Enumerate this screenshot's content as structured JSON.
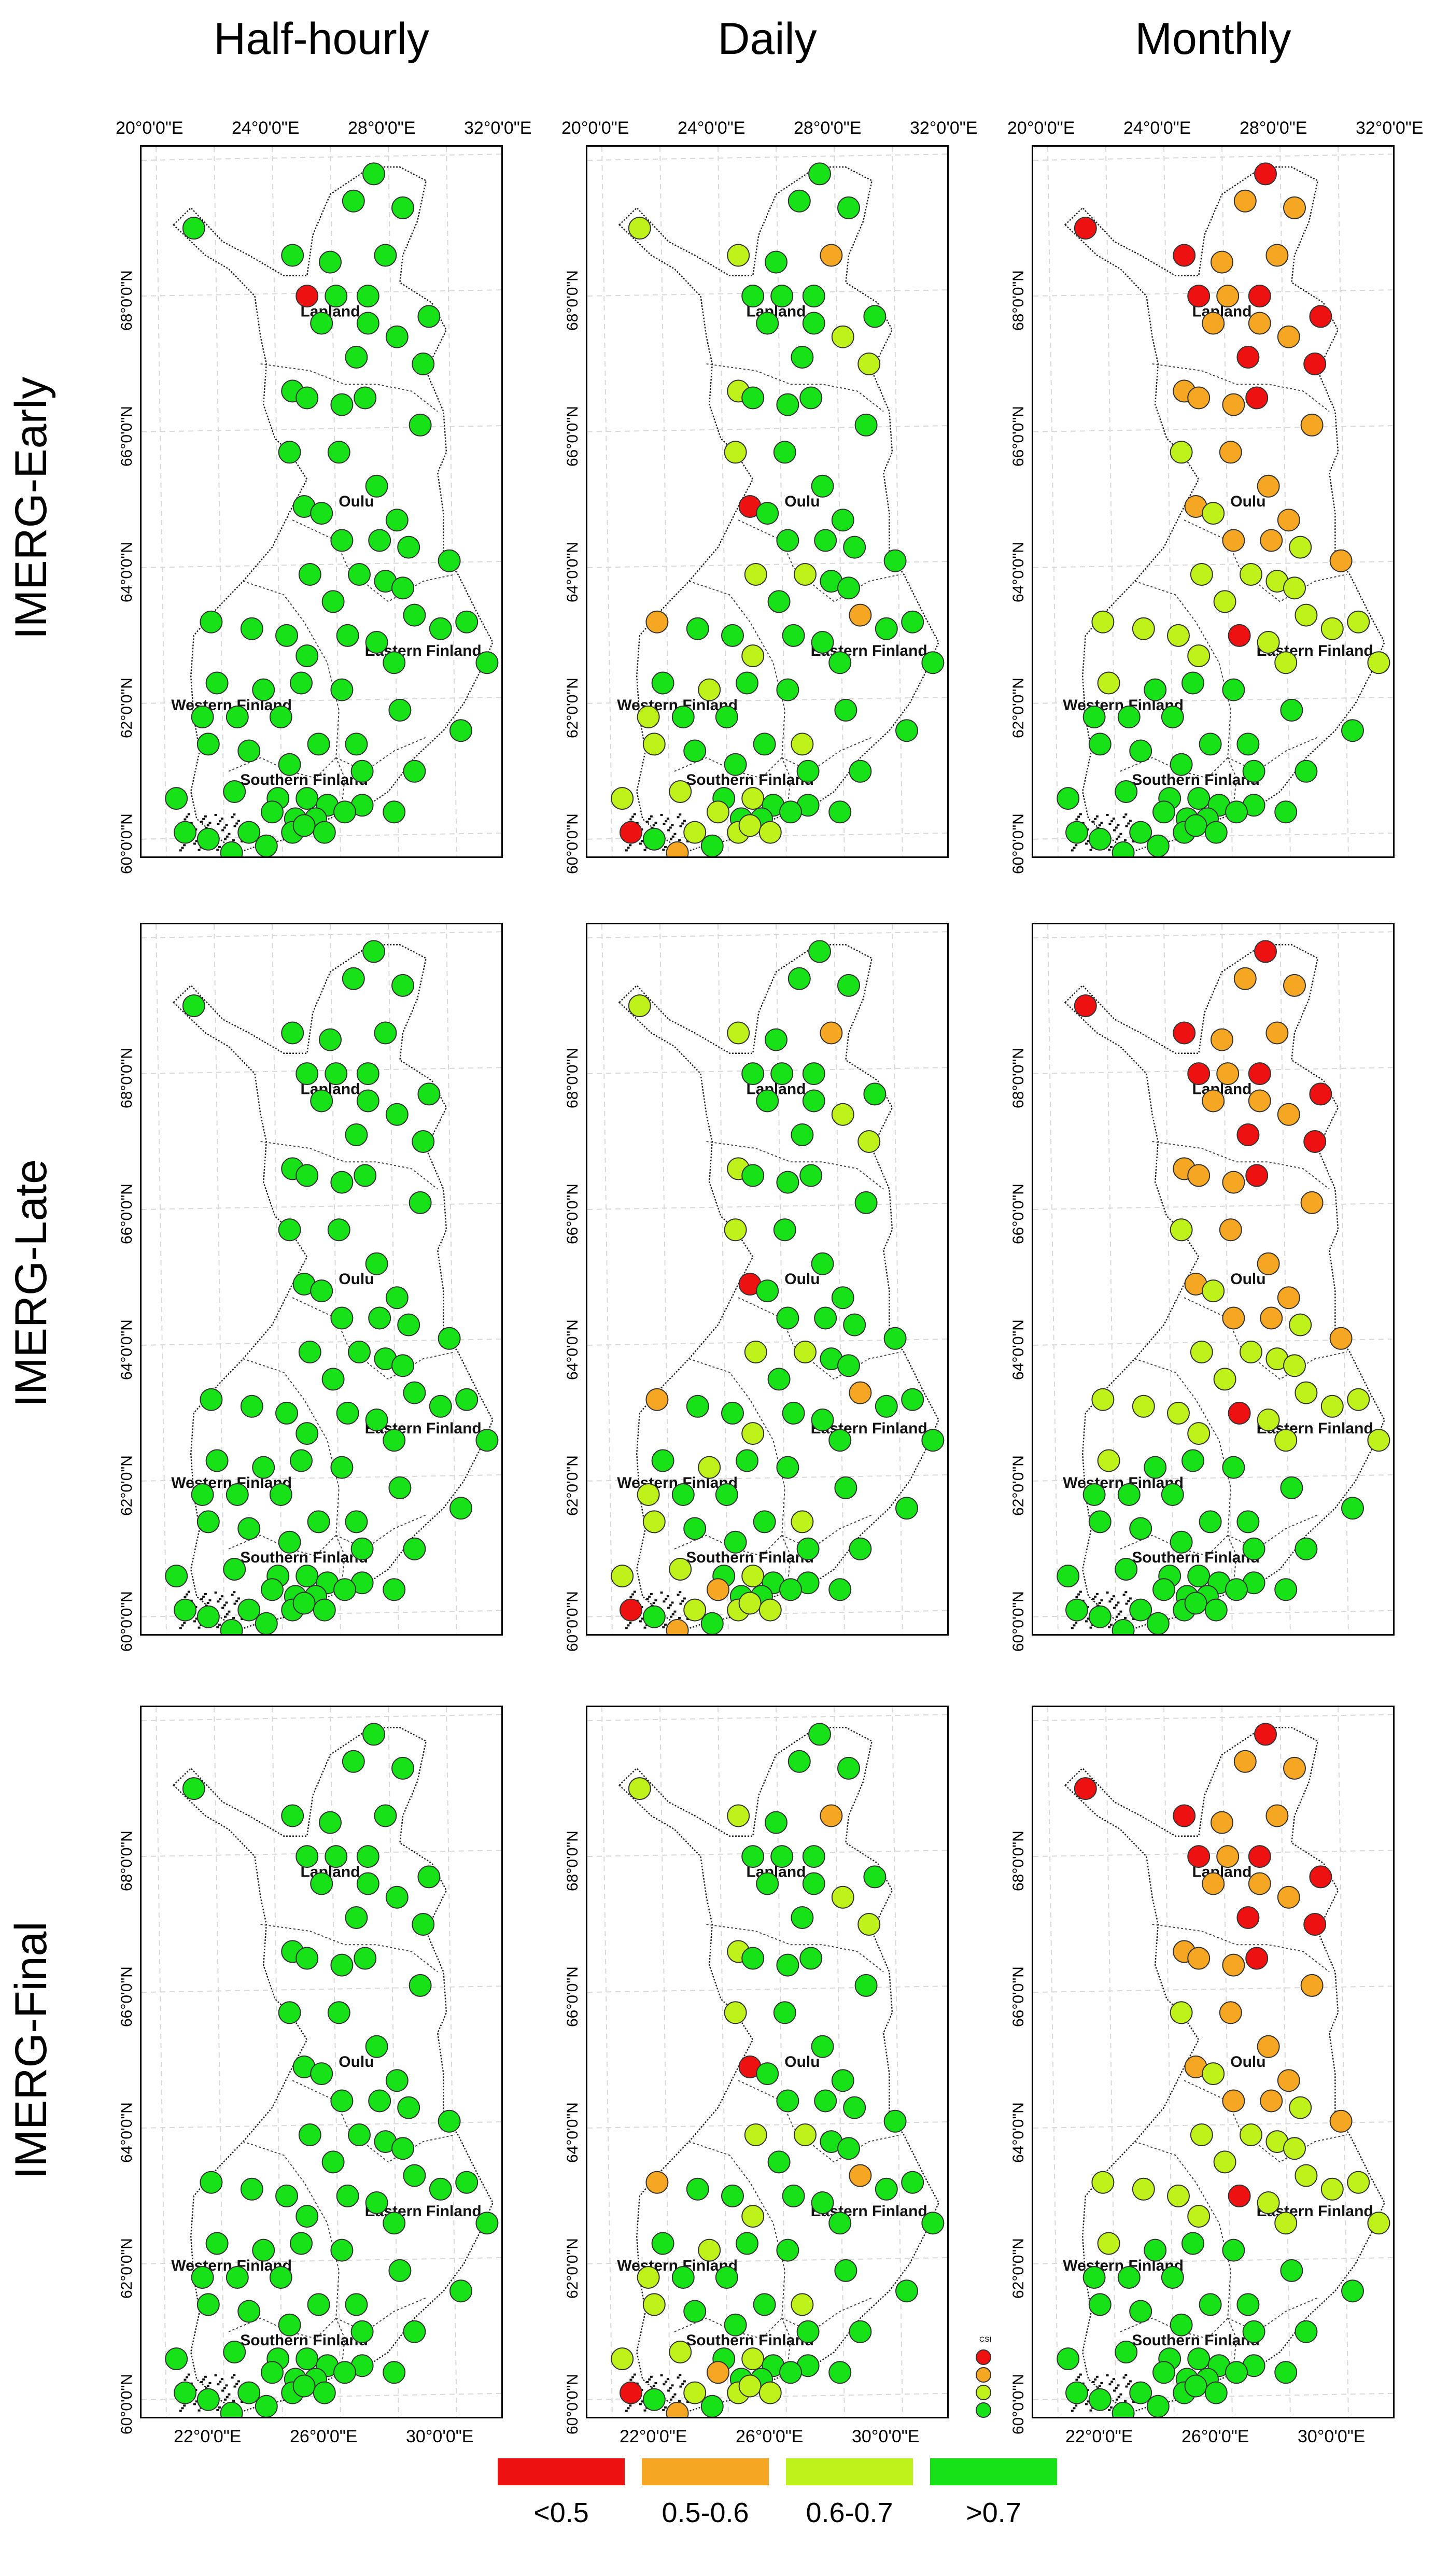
{
  "figure": {
    "column_titles": [
      "Half-hourly",
      "Daily",
      "Monthly"
    ],
    "row_titles": [
      "IMERG-Early",
      "IMERG-Late",
      "IMERG-Final"
    ],
    "top_axis_labels": [
      "20°0'0\"E",
      "24°0'0\"E",
      "28°0'0\"E",
      "32°0'0\"E"
    ],
    "bottom_axis_labels": [
      "22°0'0\"E",
      "26°0'0\"E",
      "30°0'0\"E"
    ],
    "left_axis_labels": [
      "68°0'0\"N",
      "66°0'0\"N",
      "64°0'0\"N",
      "62°0'0\"N",
      "60°0'0\"N"
    ],
    "region_labels": [
      "Lapland",
      "Oulu",
      "Eastern Finland",
      "Western Finland",
      "Southern Finland"
    ],
    "legend_title": "CSI",
    "legend": [
      {
        "label": "<0.5",
        "color": "#ee1111"
      },
      {
        "label": "0.5-0.6",
        "color": "#f5a623"
      },
      {
        "label": "0.6-0.7",
        "color": "#bff21b"
      },
      {
        "label": ">0.7",
        "color": "#17e117"
      }
    ]
  },
  "chart_data": {
    "type": "scatter",
    "description_units": "station lon/lat (degrees); csi class per panel",
    "stations": [
      [
        27.5,
        69.8
      ],
      [
        26.8,
        69.4
      ],
      [
        28.5,
        69.3
      ],
      [
        21.3,
        69.0
      ],
      [
        24.7,
        68.6
      ],
      [
        26.0,
        68.5
      ],
      [
        27.9,
        68.6
      ],
      [
        25.2,
        68.0
      ],
      [
        26.2,
        68.0
      ],
      [
        27.3,
        68.0
      ],
      [
        29.4,
        67.7
      ],
      [
        25.7,
        67.6
      ],
      [
        27.3,
        67.6
      ],
      [
        28.3,
        67.4
      ],
      [
        26.9,
        67.1
      ],
      [
        29.2,
        67.0
      ],
      [
        24.7,
        66.6
      ],
      [
        25.2,
        66.5
      ],
      [
        26.4,
        66.4
      ],
      [
        27.2,
        66.5
      ],
      [
        29.1,
        66.1
      ],
      [
        24.6,
        65.7
      ],
      [
        26.3,
        65.7
      ],
      [
        27.6,
        65.2
      ],
      [
        25.1,
        64.9
      ],
      [
        25.7,
        64.8
      ],
      [
        28.3,
        64.7
      ],
      [
        26.4,
        64.4
      ],
      [
        27.7,
        64.4
      ],
      [
        28.7,
        64.3
      ],
      [
        30.1,
        64.1
      ],
      [
        25.3,
        63.9
      ],
      [
        27.0,
        63.9
      ],
      [
        27.9,
        63.8
      ],
      [
        28.5,
        63.7
      ],
      [
        26.1,
        63.5
      ],
      [
        21.9,
        63.2
      ],
      [
        23.3,
        63.1
      ],
      [
        24.5,
        63.0
      ],
      [
        26.6,
        63.0
      ],
      [
        28.9,
        63.3
      ],
      [
        29.8,
        63.1
      ],
      [
        30.7,
        63.2
      ],
      [
        27.6,
        62.9
      ],
      [
        25.2,
        62.7
      ],
      [
        28.2,
        62.6
      ],
      [
        31.4,
        62.6
      ],
      [
        22.1,
        62.3
      ],
      [
        23.7,
        62.2
      ],
      [
        25.0,
        62.3
      ],
      [
        26.4,
        62.2
      ],
      [
        21.6,
        61.8
      ],
      [
        22.8,
        61.8
      ],
      [
        24.3,
        61.8
      ],
      [
        28.4,
        61.9
      ],
      [
        30.5,
        61.6
      ],
      [
        21.8,
        61.4
      ],
      [
        23.2,
        61.3
      ],
      [
        25.6,
        61.4
      ],
      [
        26.9,
        61.4
      ],
      [
        24.6,
        61.1
      ],
      [
        27.1,
        61.0
      ],
      [
        28.9,
        61.0
      ],
      [
        20.7,
        60.6
      ],
      [
        22.7,
        60.7
      ],
      [
        24.2,
        60.6
      ],
      [
        25.2,
        60.6
      ],
      [
        25.9,
        60.5
      ],
      [
        27.1,
        60.5
      ],
      [
        28.2,
        60.4
      ],
      [
        24.0,
        60.4
      ],
      [
        24.8,
        60.3
      ],
      [
        25.5,
        60.3
      ],
      [
        26.5,
        60.4
      ],
      [
        21.0,
        60.1
      ],
      [
        21.8,
        60.0
      ],
      [
        23.2,
        60.1
      ],
      [
        24.7,
        60.1
      ],
      [
        25.1,
        60.2
      ],
      [
        25.8,
        60.1
      ],
      [
        22.6,
        59.8
      ],
      [
        23.8,
        59.9
      ]
    ],
    "panels": [
      {
        "row": "IMERG-Early",
        "col": "Half-hourly",
        "red": [
          7
        ],
        "orange": [],
        "yellow": []
      },
      {
        "row": "IMERG-Early",
        "col": "Daily",
        "red": [
          24,
          74
        ],
        "orange": [
          6,
          36,
          40,
          80
        ],
        "yellow": [
          3,
          4,
          13,
          15,
          16,
          21,
          31,
          32,
          44,
          48,
          51,
          56,
          59,
          63,
          64,
          66,
          70,
          76,
          77,
          78,
          79
        ]
      },
      {
        "row": "IMERG-Early",
        "col": "Monthly",
        "red": [
          0,
          3,
          4,
          7,
          9,
          10,
          14,
          15,
          19,
          39
        ],
        "orange": [
          1,
          2,
          5,
          6,
          8,
          11,
          12,
          13,
          16,
          17,
          18,
          20,
          22,
          23,
          24,
          26,
          27,
          28,
          30
        ],
        "yellow": [
          21,
          25,
          29,
          31,
          32,
          33,
          34,
          35,
          36,
          37,
          38,
          40,
          41,
          42,
          43,
          44,
          45,
          46,
          47
        ]
      },
      {
        "row": "IMERG-Late",
        "col": "Half-hourly",
        "red": [],
        "orange": [],
        "yellow": []
      },
      {
        "row": "IMERG-Late",
        "col": "Daily",
        "red": [
          24,
          74
        ],
        "orange": [
          6,
          36,
          40,
          80,
          70
        ],
        "yellow": [
          3,
          4,
          13,
          15,
          16,
          21,
          31,
          32,
          44,
          48,
          51,
          56,
          59,
          63,
          64,
          66,
          76,
          77,
          78,
          79
        ]
      },
      {
        "row": "IMERG-Late",
        "col": "Monthly",
        "red": [
          0,
          3,
          4,
          7,
          9,
          10,
          14,
          15,
          19,
          39
        ],
        "orange": [
          1,
          2,
          5,
          6,
          8,
          11,
          12,
          13,
          16,
          17,
          18,
          20,
          22,
          23,
          24,
          26,
          27,
          28,
          30
        ],
        "yellow": [
          21,
          25,
          29,
          31,
          32,
          33,
          34,
          35,
          36,
          37,
          38,
          40,
          41,
          42,
          43,
          44,
          45,
          46,
          47
        ]
      },
      {
        "row": "IMERG-Final",
        "col": "Half-hourly",
        "red": [],
        "orange": [],
        "yellow": []
      },
      {
        "row": "IMERG-Final",
        "col": "Daily",
        "red": [
          24,
          74
        ],
        "orange": [
          6,
          36,
          40,
          80,
          70
        ],
        "yellow": [
          3,
          4,
          13,
          15,
          16,
          21,
          31,
          32,
          44,
          48,
          51,
          56,
          59,
          63,
          64,
          66,
          76,
          77,
          78,
          79
        ]
      },
      {
        "row": "IMERG-Final",
        "col": "Monthly",
        "red": [
          0,
          3,
          4,
          7,
          9,
          10,
          14,
          15,
          19,
          39
        ],
        "orange": [
          1,
          2,
          5,
          6,
          8,
          11,
          12,
          13,
          16,
          17,
          18,
          20,
          22,
          23,
          24,
          26,
          27,
          28,
          30
        ],
        "yellow": [
          21,
          25,
          29,
          31,
          32,
          33,
          34,
          35,
          36,
          37,
          38,
          40,
          41,
          42,
          43,
          44,
          45,
          46,
          47
        ]
      }
    ],
    "lon_range": [
      19.5,
      32.0
    ],
    "lat_range": [
      59.7,
      70.2
    ]
  }
}
